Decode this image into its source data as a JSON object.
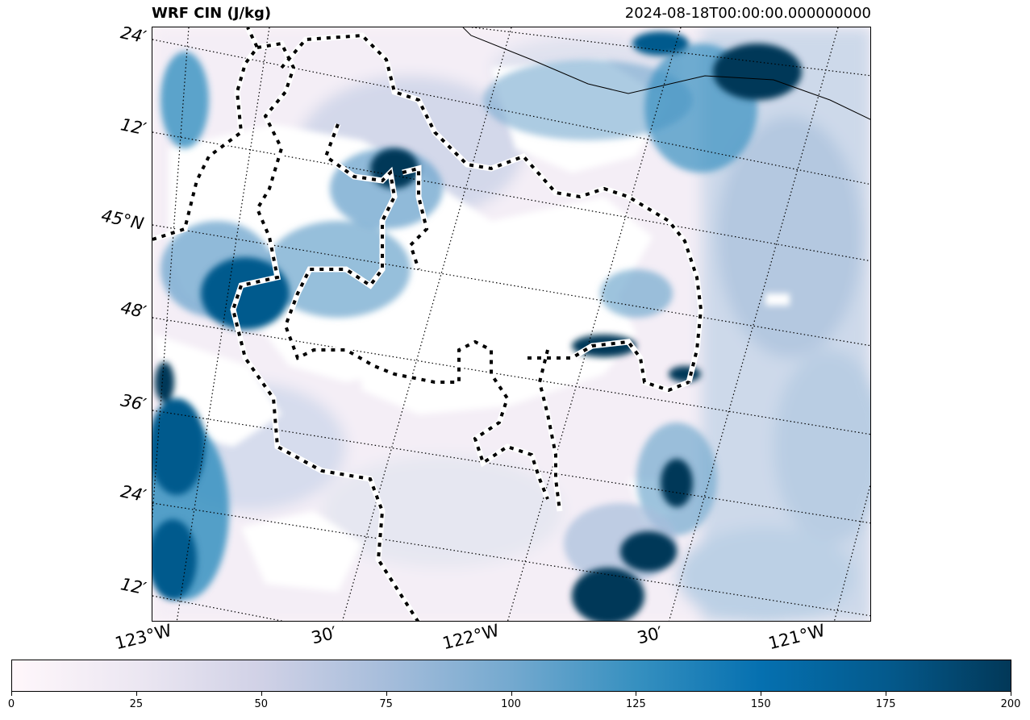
{
  "title": "WRF CIN (J/kg)",
  "timestamp": "2024-08-18T00:00:00.000000000",
  "lat_labels": [
    "24′",
    "12′",
    "45°N",
    "48′",
    "36′",
    "24′",
    "12′"
  ],
  "lon_labels": [
    "123°W",
    "30′",
    "122°W",
    "30′",
    "121°W"
  ],
  "colorbar": {
    "ticks": [
      "0",
      "25",
      "50",
      "75",
      "100",
      "125",
      "150",
      "175",
      "200"
    ],
    "colormap": "PuBu",
    "stops": [
      "#fff7fb",
      "#ece7f2",
      "#d0d1e6",
      "#a6bddb",
      "#74a9cf",
      "#3690c0",
      "#0570b0",
      "#045a8d",
      "#023858"
    ]
  },
  "colors": {
    "dark": "#023858",
    "mid": "#0570b0",
    "light": "#74a9cf",
    "pale": "#d0d1e6",
    "very_pale": "#fcf4f8"
  }
}
